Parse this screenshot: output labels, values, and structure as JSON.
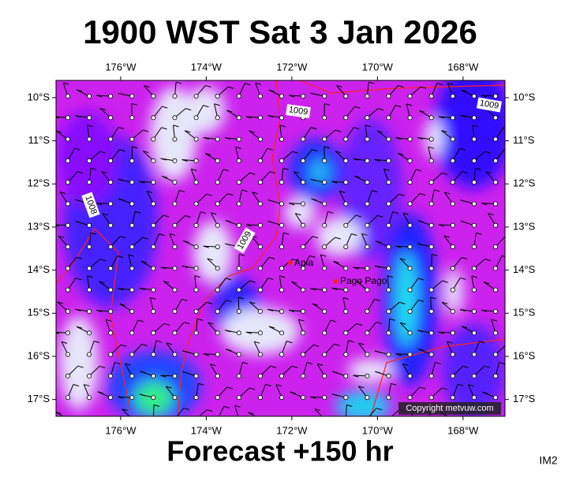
{
  "map": {
    "title": "1900 WST Sat 3 Jan 2026",
    "subtitle": "Forecast +150 hr",
    "corner_label": "IM2",
    "copyright": "Copyright metvuw.com",
    "xlim": [
      -177.51,
      -167.02
    ],
    "ylim": [
      -17.39,
      -9.6
    ],
    "xticks": [
      {
        "value": -176,
        "label": "176°W"
      },
      {
        "value": -174,
        "label": "174°W"
      },
      {
        "value": -172,
        "label": "172°W"
      },
      {
        "value": -170,
        "label": "170°W"
      },
      {
        "value": -168,
        "label": "168°W"
      }
    ],
    "yticks": [
      {
        "value": -10,
        "label": "10°S"
      },
      {
        "value": -11,
        "label": "11°S"
      },
      {
        "value": -12,
        "label": "12°S"
      },
      {
        "value": -13,
        "label": "13°S"
      },
      {
        "value": -14,
        "label": "14°S"
      },
      {
        "value": -15,
        "label": "15°S"
      },
      {
        "value": -16,
        "label": "16°S"
      },
      {
        "value": -17,
        "label": "17°S"
      }
    ],
    "places": [
      "Apia",
      "Pago Pago"
    ],
    "isobar_labels": [
      "1009",
      "1009",
      "1008",
      "1009"
    ]
  }
}
